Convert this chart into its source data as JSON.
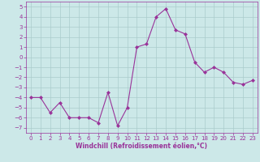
{
  "x": [
    0,
    1,
    2,
    3,
    4,
    5,
    6,
    7,
    8,
    9,
    10,
    11,
    12,
    13,
    14,
    15,
    16,
    17,
    18,
    19,
    20,
    21,
    22,
    23
  ],
  "y": [
    -4,
    -4,
    -5.5,
    -4.5,
    -6,
    -6,
    -6,
    -6.5,
    -3.5,
    -6.8,
    -5,
    1,
    1.3,
    4,
    4.8,
    2.7,
    2.3,
    -0.5,
    -1.5,
    -1,
    -1.5,
    -2.5,
    -2.7,
    -2.3
  ],
  "line_color": "#993399",
  "marker": "D",
  "marker_size": 2,
  "bg_color": "#cce8e8",
  "grid_color": "#aacccc",
  "xlabel": "Windchill (Refroidissement éolien,°C)",
  "xlabel_color": "#993399",
  "tick_color": "#993399",
  "ylim": [
    -7.5,
    5.5
  ],
  "xlim": [
    -0.5,
    23.5
  ],
  "yticks": [
    -7,
    -6,
    -5,
    -4,
    -3,
    -2,
    -1,
    0,
    1,
    2,
    3,
    4,
    5
  ],
  "xticks": [
    0,
    1,
    2,
    3,
    4,
    5,
    6,
    7,
    8,
    9,
    10,
    11,
    12,
    13,
    14,
    15,
    16,
    17,
    18,
    19,
    20,
    21,
    22,
    23
  ],
  "xtick_labels": [
    "0",
    "1",
    "2",
    "3",
    "4",
    "5",
    "6",
    "7",
    "8",
    "9",
    "10",
    "11",
    "12",
    "13",
    "14",
    "15",
    "16",
    "17",
    "18",
    "19",
    "20",
    "21",
    "22",
    "23"
  ]
}
